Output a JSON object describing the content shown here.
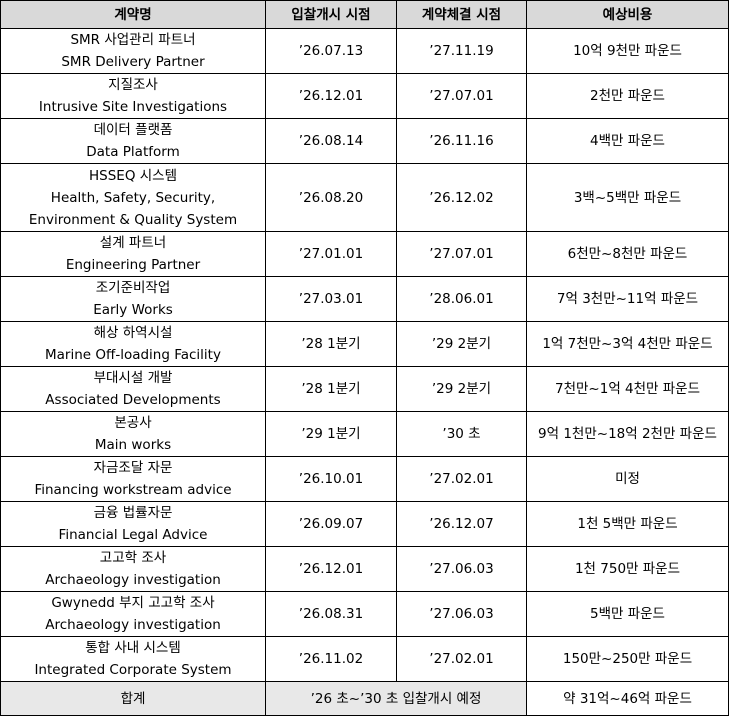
{
  "table": {
    "header": [
      "계약명",
      "입찰개시 시점",
      "계약체결 시점",
      "예상비용"
    ],
    "rows": [
      {
        "name": [
          "SMR 사업관리 파트너",
          "SMR Delivery Partner"
        ],
        "start": "’26.07.13",
        "signed": "’27.11.19",
        "cost": "10억 9천만 파운드"
      },
      {
        "name": [
          "지질조사",
          "Intrusive Site Investigations"
        ],
        "start": "’26.12.01",
        "signed": "’27.07.01",
        "cost": "2천만 파운드"
      },
      {
        "name": [
          "데이터 플랫폼",
          "Data Platform"
        ],
        "start": "’26.08.14",
        "signed": "’26.11.16",
        "cost": "4백만 파운드"
      },
      {
        "name": [
          "HSSEQ 시스템",
          "Health, Safety, Security,",
          "Environment & Quality System"
        ],
        "start": "’26.08.20",
        "signed": "’26.12.02",
        "cost": "3백~5백만 파운드"
      },
      {
        "name": [
          "설계 파트너",
          "Engineering Partner"
        ],
        "start": "’27.01.01",
        "signed": "’27.07.01",
        "cost": "6천만~8천만 파운드"
      },
      {
        "name": [
          "조기준비작업",
          "Early Works"
        ],
        "start": "’27.03.01",
        "signed": "’28.06.01",
        "cost": "7억 3천만~11억 파운드"
      },
      {
        "name": [
          "해상 하역시설",
          "Marine Off-loading Facility"
        ],
        "start": "’28 1분기",
        "signed": "’29 2분기",
        "cost": "1억 7천만~3억 4천만 파운드"
      },
      {
        "name": [
          "부대시설 개발",
          "Associated Developments"
        ],
        "start": "’28 1분기",
        "signed": "’29 2분기",
        "cost": "7천만~1억 4천만 파운드"
      },
      {
        "name": [
          "본공사",
          "Main works"
        ],
        "start": "’29 1분기",
        "signed": "’30 초",
        "cost": "9억 1천만~18억 2천만 파운드"
      },
      {
        "name": [
          "자금조달 자문",
          "Financing workstream advice"
        ],
        "start": "’26.10.01",
        "signed": "’27.02.01",
        "cost": "미정"
      },
      {
        "name": [
          "금융 법률자문",
          "Financial Legal Advice"
        ],
        "start": "’26.09.07",
        "signed": "’26.12.07",
        "cost": "1천 5백만 파운드"
      },
      {
        "name": [
          "고고학 조사",
          "Archaeology investigation"
        ],
        "start": "’26.12.01",
        "signed": "’27.06.03",
        "cost": "1천 750만 파운드"
      },
      {
        "name": [
          "Gwynedd 부지 고고학 조사",
          "Archaeology investigation"
        ],
        "start": "’26.08.31",
        "signed": "’27.06.03",
        "cost": "5백만 파운드"
      },
      {
        "name": [
          "통합 사내 시스템",
          "Integrated Corporate System"
        ],
        "start": "’26.11.02",
        "signed": "’27.02.01",
        "cost": "150만~250만 파운드"
      }
    ],
    "footer": {
      "label": "합계",
      "period": "’26 초~’30 초 입찰개시 예정",
      "cost": "약 31억~46억 파운드"
    }
  }
}
